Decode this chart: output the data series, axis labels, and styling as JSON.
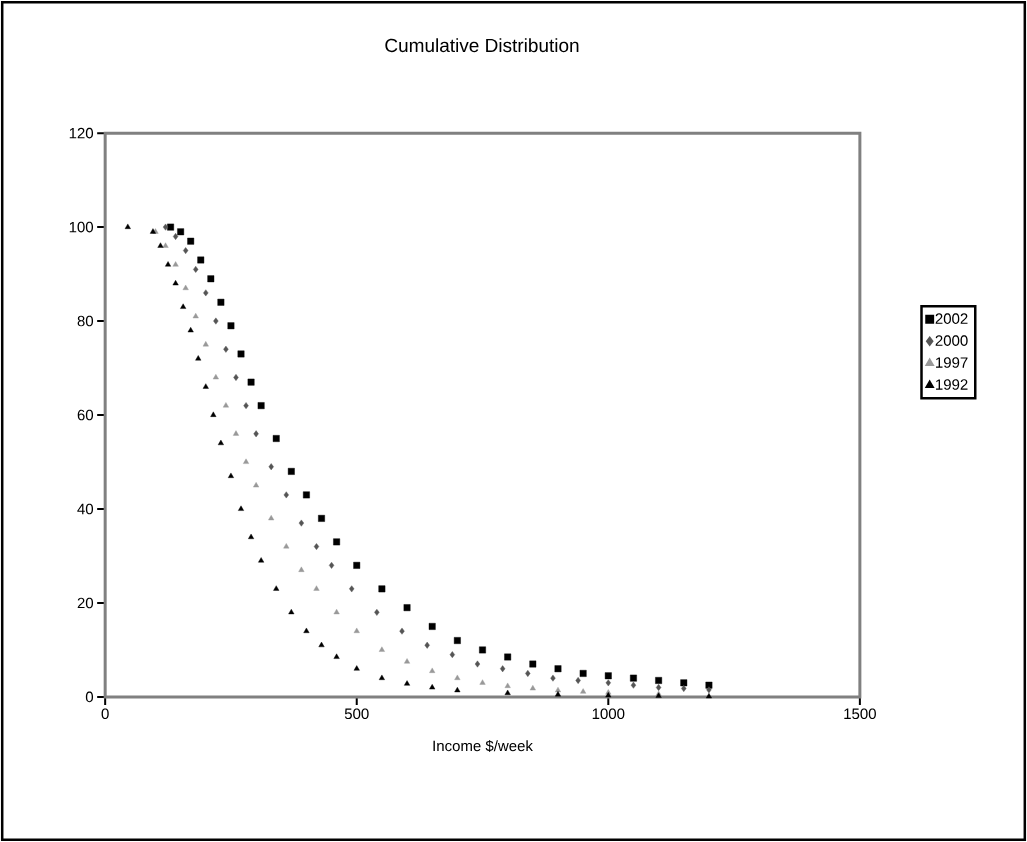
{
  "chart_data": {
    "type": "scatter",
    "title": "Cumulative Distribution",
    "xlabel": "Income $/week",
    "xlim": [
      0,
      1500
    ],
    "xticks": [
      0,
      500,
      1000,
      1500
    ],
    "ylim": [
      0,
      120
    ],
    "yticks": [
      0,
      20,
      40,
      60,
      80,
      100,
      120
    ],
    "grid": false,
    "legend": "right",
    "series": [
      {
        "name": "2002",
        "color": "#000000",
        "marker": "square",
        "x": [
          130,
          150,
          170,
          190,
          210,
          230,
          250,
          270,
          290,
          310,
          340,
          370,
          400,
          430,
          460,
          500,
          550,
          600,
          650,
          700,
          750,
          800,
          850,
          900,
          950,
          1000,
          1050,
          1100,
          1150,
          1200
        ],
        "values": [
          100,
          99,
          97,
          93,
          89,
          84,
          79,
          73,
          67,
          62,
          55,
          48,
          43,
          38,
          33,
          28,
          23,
          19,
          15,
          12,
          10,
          8.5,
          7,
          6,
          5,
          4.5,
          4,
          3.5,
          3,
          2.5
        ]
      },
      {
        "name": "2000",
        "color": "#555555",
        "marker": "diamond",
        "x": [
          120,
          140,
          160,
          180,
          200,
          220,
          240,
          260,
          280,
          300,
          330,
          360,
          390,
          420,
          450,
          490,
          540,
          590,
          640,
          690,
          740,
          790,
          840,
          890,
          940,
          1000,
          1050,
          1100,
          1150,
          1200
        ],
        "values": [
          100,
          98,
          95,
          91,
          86,
          80,
          74,
          68,
          62,
          56,
          49,
          43,
          37,
          32,
          28,
          23,
          18,
          14,
          11,
          9,
          7,
          6,
          5,
          4,
          3.5,
          3,
          2.5,
          2,
          1.8,
          1.5
        ]
      },
      {
        "name": "1997",
        "color": "#999999",
        "marker": "triangle",
        "x": [
          100,
          120,
          140,
          160,
          180,
          200,
          220,
          240,
          260,
          280,
          300,
          330,
          360,
          390,
          420,
          460,
          500,
          550,
          600,
          650,
          700,
          750,
          800,
          850,
          900,
          950,
          1000,
          1100
        ],
        "values": [
          99,
          96,
          92,
          87,
          81,
          75,
          68,
          62,
          56,
          50,
          45,
          38,
          32,
          27,
          23,
          18,
          14,
          10,
          7.5,
          5.5,
          4,
          3,
          2.3,
          1.8,
          1.4,
          1.1,
          0.9,
          0.6
        ]
      },
      {
        "name": "1992",
        "color": "#000000",
        "marker": "triangle",
        "x": [
          45,
          95,
          110,
          125,
          140,
          155,
          170,
          185,
          200,
          215,
          230,
          250,
          270,
          290,
          310,
          340,
          370,
          400,
          430,
          460,
          500,
          550,
          600,
          650,
          700,
          800,
          900,
          1000,
          1100,
          1200
        ],
        "values": [
          100,
          99,
          96,
          92,
          88,
          83,
          78,
          72,
          66,
          60,
          54,
          47,
          40,
          34,
          29,
          23,
          18,
          14,
          11,
          8.5,
          6,
          4,
          2.8,
          2,
          1.4,
          0.8,
          0.5,
          0.3,
          0.2,
          0.1
        ]
      }
    ]
  }
}
